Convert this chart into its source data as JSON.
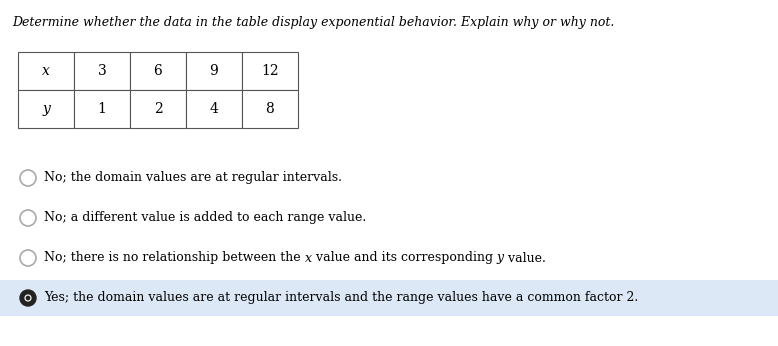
{
  "title": "Determine whether the data in the table display exponential behavior. Explain why or why not.",
  "row1": [
    "x",
    "3",
    "6",
    "9",
    "12"
  ],
  "row2": [
    "y",
    "1",
    "2",
    "4",
    "8"
  ],
  "options": [
    {
      "parts": [
        {
          "text": "No; the domain values are at regular intervals.",
          "italic": false
        }
      ],
      "selected": false
    },
    {
      "parts": [
        {
          "text": "No; a different value is added to each range value.",
          "italic": false
        }
      ],
      "selected": false
    },
    {
      "parts": [
        {
          "text": "No; there is no relationship between the ",
          "italic": false
        },
        {
          "text": "x",
          "italic": true
        },
        {
          "text": " value and its corresponding ",
          "italic": false
        },
        {
          "text": "y",
          "italic": true
        },
        {
          "text": " value.",
          "italic": false
        }
      ],
      "selected": false
    },
    {
      "parts": [
        {
          "text": "Yes; the domain values are at regular intervals and the range values have a common factor 2.",
          "italic": false
        }
      ],
      "selected": true
    }
  ],
  "bg_color": "#ffffff",
  "selected_bg": "#dce8f5",
  "fig_width": 7.78,
  "fig_height": 3.46,
  "dpi": 100
}
